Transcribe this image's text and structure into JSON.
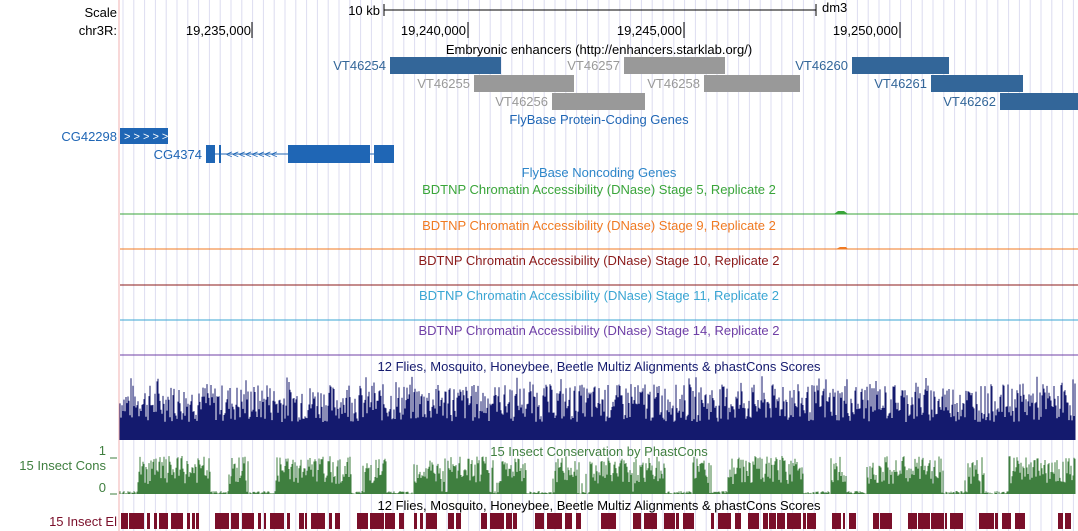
{
  "ruler": {
    "scale_label": "Scale",
    "chrom_label": "chr3R:",
    "scale_bar_label": "10 kb",
    "assembly": "dm3",
    "ticks": [
      "19,235,000",
      "19,240,000",
      "19,245,000",
      "19,250,000"
    ]
  },
  "tracks": {
    "enhancers": {
      "title": "Embryonic enhancers (http://enhancers.starklab.org/)",
      "items": [
        {
          "label": "VT46254",
          "color": "#336699"
        },
        {
          "label": "VT46255",
          "color": "#999999"
        },
        {
          "label": "VT46256",
          "color": "#999999"
        },
        {
          "label": "VT46257",
          "color": "#999999"
        },
        {
          "label": "VT46258",
          "color": "#999999"
        },
        {
          "label": "VT46260",
          "color": "#336699"
        },
        {
          "label": "VT46261",
          "color": "#336699"
        },
        {
          "label": "VT46262",
          "color": "#336699"
        }
      ]
    },
    "protein_genes": {
      "title": "FlyBase Protein-Coding Genes",
      "color": "#1f66b5",
      "genes": [
        "CG42298",
        "CG4374"
      ]
    },
    "noncoding": {
      "title": "FlyBase Noncoding Genes",
      "color": "#2d86c9"
    },
    "dnase": [
      {
        "title": "BDTNP Chromatin Accessibility (DNase) Stage 5, Replicate 2",
        "color": "#3aa53a"
      },
      {
        "title": "BDTNP Chromatin Accessibility (DNase) Stage 9, Replicate 2",
        "color": "#f07a22"
      },
      {
        "title": "BDTNP Chromatin Accessibility (DNase) Stage 10, Replicate 2",
        "color": "#8b1a1a"
      },
      {
        "title": "BDTNP Chromatin Accessibility (DNase) Stage 11, Replicate 2",
        "color": "#3aa6d3"
      },
      {
        "title": "BDTNP Chromatin Accessibility (DNase) Stage 14, Replicate 2",
        "color": "#6f3fa6"
      }
    ],
    "multiz": {
      "title": "12 Flies, Mosquito, Honeybee, Beetle Multiz Alignments & phastCons Scores",
      "color": "#141a6e"
    },
    "insect_cons": {
      "title": "15 Insect Conservation by PhastCons",
      "side_label": "15 Insect Cons",
      "axis_max": "1",
      "axis_min": "0",
      "color": "#3f7f3f"
    },
    "insect_el": {
      "title": "12 Flies, Mosquito, Honeybee, Beetle Multiz Alignments & phastCons Scores",
      "side_label": "15 Insect El",
      "color": "#7a0f2a"
    }
  }
}
